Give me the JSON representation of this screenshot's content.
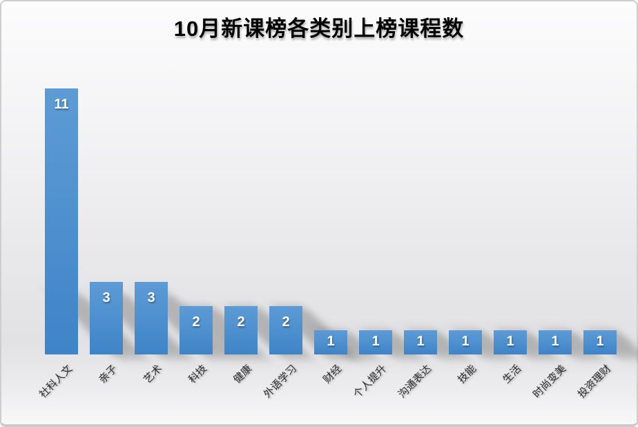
{
  "title": "10月新课榜各类别上榜课程数",
  "chart_data": {
    "type": "bar",
    "title": "10月新课榜各类别上榜课程数",
    "categories": [
      "社科人文",
      "亲子",
      "艺术",
      "科技",
      "健康",
      "外语学习",
      "财经",
      "个人提升",
      "沟通表达",
      "技能",
      "生活",
      "时尚变美",
      "投资理财"
    ],
    "values": [
      11,
      3,
      3,
      2,
      2,
      2,
      1,
      1,
      1,
      1,
      1,
      1,
      1
    ],
    "xlabel": "",
    "ylabel": "",
    "ylim": [
      0,
      11
    ],
    "grid": false,
    "legend": "none",
    "axis_lines": "none",
    "value_labels_position": "inside-end",
    "category_label_rotation_deg": -45,
    "bar_color_top": "#5D9BD5",
    "bar_color_bottom": "#3F84C8",
    "value_label_color": "#FFFFFF",
    "title_color": "#000000",
    "category_label_color": "#2E2E2E",
    "background_top": "#FCFCFD",
    "background_bottom": "#E2E2E4",
    "frame_color": "#CDCDCD",
    "shadow_style": "perspective-diagonal-lower-right"
  }
}
